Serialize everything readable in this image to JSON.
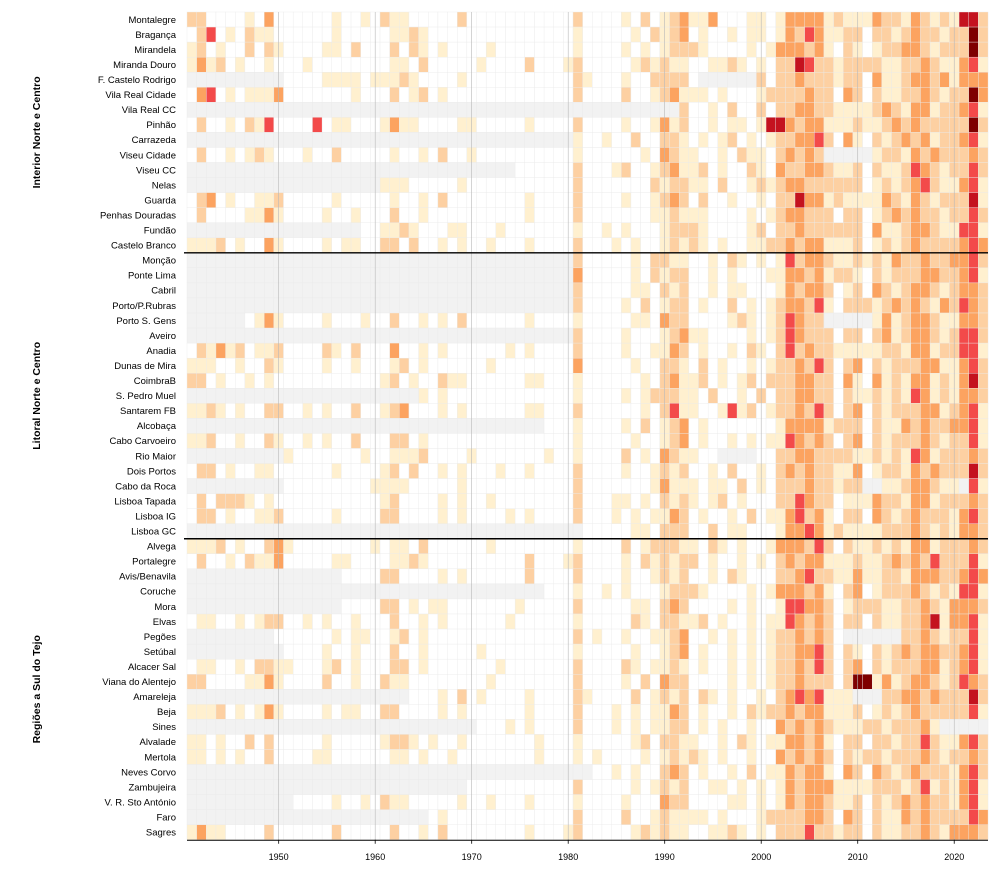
{
  "chart_data": {
    "type": "heatmap",
    "x_range": [
      1941,
      2023
    ],
    "x_ticks": [
      "1950",
      "1960",
      "1970",
      "1980",
      "1990",
      "2000",
      "2010",
      "2020"
    ],
    "groups": [
      {
        "name": "Interior Norte e Centro",
        "stations": [
          "Montalegre",
          "Bragança",
          "Mirandela",
          "Miranda Douro",
          "F. Castelo Rodrigo",
          "Vila Real Cidade",
          "Vila Real CC",
          "Pinhão",
          "Carrazeda",
          "Viseu Cidade",
          "Viseu CC",
          "Nelas",
          "Guarda",
          "Penhas Douradas",
          "Fundão",
          "Castelo Branco"
        ]
      },
      {
        "name": "Litoral Norte e Centro",
        "stations": [
          "Monção",
          "Ponte Lima",
          "Cabril",
          "Porto/P.Rubras",
          "Porto S. Gens",
          "Aveiro",
          "Anadia",
          "Dunas de Mira",
          "CoimbraB",
          "S. Pedro Muel",
          "Santarem FB",
          "Alcobaça",
          "Cabo Carvoeiro",
          "Rio Maior",
          "Dois Portos",
          "Cabo da Roca",
          "Lisboa Tapada",
          "Lisboa IG",
          "Lisboa GC"
        ]
      },
      {
        "name": "Regiões a Sul do Tejo",
        "stations": [
          "Alvega",
          "Portalegre",
          "Avis/Benavila",
          "Coruche",
          "Mora",
          "Elvas",
          "Pegões",
          "Setúbal",
          "Alcacer Sal",
          "Viana do Alentejo",
          "Amareleja",
          "Beja",
          "Sines",
          "Alvalade",
          "Mertola",
          "Neves Corvo",
          "Zambujeira",
          "V. R. Sto António",
          "Faro",
          "Sagres"
        ]
      }
    ],
    "data_start_years": {
      "F. Castelo Rodrigo": 1951,
      "Vila Real Cidade": 1941,
      "Vila Real CC": 1992,
      "Carrazeda": 1981,
      "Viseu CC": 1975,
      "Nelas": 1961,
      "Fundão": 1959,
      "Monção": 1981,
      "Ponte Lima": 1981,
      "Cabril": 1981,
      "Porto/P.Rubras": 1981,
      "Porto S. Gens": 1947,
      "Aveiro": 1981,
      "Anadia": 1941,
      "Dunas de Mira": 1941,
      "CoimbraB": 1941,
      "S. Pedro Muel": 1965,
      "Santarem FB": 1941,
      "Alcobaça": 1978,
      "Cabo Carvoeiro": 1941,
      "Rio Maior": 1951,
      "Dois Portos": 1941,
      "Cabo da Roca": 1951,
      "Lisboa Tapada": 1941,
      "Lisboa IG": 1941,
      "Lisboa GC": 1982,
      "Avis/Benavila": 1957,
      "Coruche": 1978,
      "Mora": 1957,
      "Elvas": 1941,
      "Pegões": 1950,
      "Setúbal": 1951,
      "Alcacer Sal": 1941,
      "Viana do Alentejo": 1941,
      "Amareleja": 1964,
      "Beja": 1941,
      "Sines": 1971,
      "Alvalade": 1941,
      "Mertola": 1941,
      "Neves Corvo": 1983,
      "Zambujeira": 1970,
      "V. R. Sto António": 1952,
      "Faro": 1966,
      "Sagres": 1941
    },
    "missing_intervals": {
      "F. Castelo Rodrigo": [
        [
          1994,
          1999
        ]
      ],
      "Viseu Cidade": [
        [
          2007,
          2011
        ]
      ],
      "Porto S. Gens": [
        [
          2007,
          2011
        ]
      ],
      "Rio Maior": [
        [
          1996,
          1999
        ]
      ],
      "Cabo da Roca": [
        [
          2011,
          2012
        ],
        [
          2021,
          2021
        ]
      ],
      "Pegões": [
        [
          2009,
          2014
        ]
      ],
      "Amareleja": [
        [
          2010,
          2012
        ]
      ],
      "Sines": [
        [
          2019,
          2023
        ]
      ]
    },
    "year_scores": {
      "1941": 1,
      "1942": 2,
      "1943": 1,
      "1944": 1,
      "1945": 1,
      "1946": 1,
      "1947": 1,
      "1948": 1,
      "1949": 2,
      "1950": 1,
      "1955": 1,
      "1956": 1,
      "1958": 1,
      "1961": 1,
      "1962": 2,
      "1963": 1,
      "1964": 1,
      "1965": 1,
      "1967": 1,
      "1969": 1,
      "1976": 1,
      "1981": 2,
      "1986": 1,
      "1987": 1,
      "1988": 1,
      "1989": 1,
      "1990": 2,
      "1991": 2,
      "1992": 2,
      "1993": 1,
      "1994": 1,
      "1995": 1,
      "1996": 1,
      "1997": 1,
      "1998": 1,
      "1999": 1,
      "2000": 1,
      "2001": 1,
      "2002": 2,
      "2003": 3,
      "2004": 3,
      "2005": 3,
      "2006": 3,
      "2007": 2,
      "2008": 1,
      "2009": 2,
      "2010": 2,
      "2011": 1,
      "2012": 2,
      "2013": 2,
      "2014": 2,
      "2015": 2,
      "2016": 3,
      "2017": 3,
      "2018": 2,
      "2019": 2,
      "2020": 2,
      "2021": 3,
      "2022": 4,
      "2023": 2
    },
    "cell_overrides": [
      {
        "station": "Bragança",
        "year": 1943,
        "level": 4
      },
      {
        "station": "Vila Real Cidade",
        "year": 1943,
        "level": 4
      },
      {
        "station": "Vila Real Cidade",
        "year": 1950,
        "level": 3
      },
      {
        "station": "Pinhão",
        "year": 1949,
        "level": 4
      },
      {
        "station": "Pinhão",
        "year": 1954,
        "level": 4
      },
      {
        "station": "Guarda",
        "year": 1943,
        "level": 3
      },
      {
        "station": "Alvega",
        "year": 1950,
        "level": 3
      },
      {
        "station": "Portalegre",
        "year": 1950,
        "level": 3
      },
      {
        "station": "Anadia",
        "year": 1944,
        "level": 3
      },
      {
        "station": "Lisboa Tapada",
        "year": 1945,
        "level": 2
      },
      {
        "station": "Lisboa Tapada",
        "year": 1946,
        "level": 2
      },
      {
        "station": "Santarem FB",
        "year": 1963,
        "level": 3
      },
      {
        "station": "Santarem FB",
        "year": 1991,
        "level": 4
      },
      {
        "station": "Santarem FB",
        "year": 1997,
        "level": 4
      },
      {
        "station": "Montalegre",
        "year": 1995,
        "level": 3
      },
      {
        "station": "Montalegre",
        "year": 2021,
        "level": 5
      },
      {
        "station": "Montalegre",
        "year": 2022,
        "level": 5
      },
      {
        "station": "Pinhão",
        "year": 2001,
        "level": 5
      },
      {
        "station": "Pinhão",
        "year": 2002,
        "level": 5
      },
      {
        "station": "Pinhão",
        "year": 2022,
        "level": 6
      },
      {
        "station": "Mirandela",
        "year": 2022,
        "level": 6
      },
      {
        "station": "Bragança",
        "year": 2022,
        "level": 6
      },
      {
        "station": "Vila Real Cidade",
        "year": 2022,
        "level": 6
      },
      {
        "station": "Guarda",
        "year": 2004,
        "level": 5
      },
      {
        "station": "Guarda",
        "year": 2022,
        "level": 5
      },
      {
        "station": "Miranda Douro",
        "year": 2004,
        "level": 5
      },
      {
        "station": "Viana do Alentejo",
        "year": 2010,
        "level": 6
      },
      {
        "station": "Viana do Alentejo",
        "year": 2011,
        "level": 6
      },
      {
        "station": "Elvas",
        "year": 2018,
        "level": 5
      },
      {
        "station": "Alvega",
        "year": 2006,
        "level": 4
      },
      {
        "station": "Portalegre",
        "year": 2018,
        "level": 4
      },
      {
        "station": "Amareleja",
        "year": 2004,
        "level": 4
      },
      {
        "station": "Alvalade",
        "year": 2022,
        "level": 4
      },
      {
        "station": "Monção",
        "year": 2022,
        "level": 4
      },
      {
        "station": "Cabo Carvoeiro",
        "year": 2010,
        "level": 3
      },
      {
        "station": "Mora",
        "year": 2004,
        "level": 4
      }
    ],
    "color_scale": [
      "#ffffff",
      "#fff0cf",
      "#fdd0a2",
      "#fca360",
      "#f34a4a",
      "#c4121f",
      "#7f0000"
    ],
    "missing_color": "#f2f2f2",
    "grid_color": "#eaeaea",
    "separator_color": "#000000"
  }
}
